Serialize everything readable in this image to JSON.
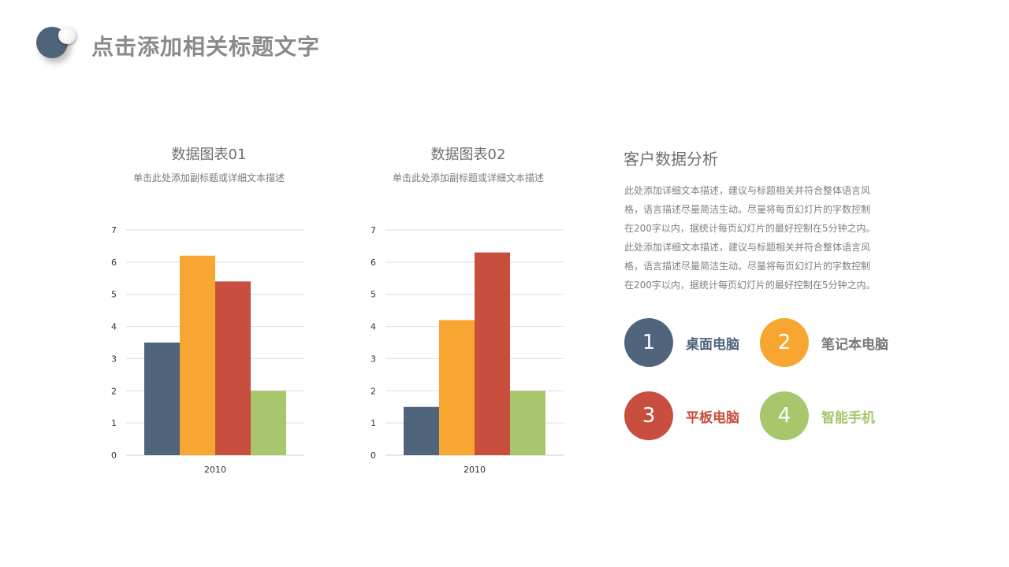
{
  "page": {
    "title": "点击添加相关标题文字"
  },
  "charts": [
    {
      "title": "数据图表01",
      "subtitle": "单击此处添加副标题或详细文本描述"
    },
    {
      "title": "数据图表02",
      "subtitle": "单击此处添加副标题或详细文本描述"
    }
  ],
  "chart_data": [
    {
      "type": "bar",
      "title": "数据图表01",
      "subtitle": "单击此处添加副标题或详细文本描述",
      "categories": [
        "2010"
      ],
      "ylim": [
        0,
        7
      ],
      "yticks": [
        0,
        1,
        2,
        3,
        4,
        5,
        6,
        7
      ],
      "grid": true,
      "series": [
        {
          "values": [
            3.5
          ],
          "color": "#50657c"
        },
        {
          "values": [
            6.2
          ],
          "color": "#f8a632"
        },
        {
          "values": [
            5.4
          ],
          "color": "#c84e3e"
        },
        {
          "values": [
            2.0
          ],
          "color": "#a8c66c"
        }
      ]
    },
    {
      "type": "bar",
      "title": "数据图表02",
      "subtitle": "单击此处添加副标题或详细文本描述",
      "categories": [
        "2010"
      ],
      "ylim": [
        0,
        7
      ],
      "yticks": [
        0,
        1,
        2,
        3,
        4,
        5,
        6,
        7
      ],
      "grid": true,
      "series": [
        {
          "values": [
            1.5
          ],
          "color": "#50657c"
        },
        {
          "values": [
            4.2
          ],
          "color": "#f8a632"
        },
        {
          "values": [
            6.3
          ],
          "color": "#c84e3e"
        },
        {
          "values": [
            2.0
          ],
          "color": "#a8c66c"
        }
      ]
    }
  ],
  "summary": {
    "title": "客户数据分析",
    "lines": [
      "此处添加详细文本描述，建议与标题相关并符合整体语言风",
      "格，语言描述尽量简洁生动。尽量将每页幻灯片的字数控制",
      "在200字以内，据统计每页幻灯片的最好控制在5分钟之内。",
      "此处添加详细文本描述，建议与标题相关并符合整体语言风",
      "格，语言描述尽量简洁生动。尽量将每页幻灯片的字数控制",
      "在200字以内，据统计每页幻灯片的最好控制在5分钟之内。"
    ]
  },
  "legend": [
    {
      "number": "1",
      "label": "桌面电脑",
      "color": "#50657c",
      "text_color": "#50657c"
    },
    {
      "number": "2",
      "label": "笔记本电脑",
      "color": "#f8a632",
      "text_color": "#777777"
    },
    {
      "number": "3",
      "label": "平板电脑",
      "color": "#c84e3e",
      "text_color": "#c84e3e"
    },
    {
      "number": "4",
      "label": "智能手机",
      "color": "#a8c66c",
      "text_color": "#a8c66c"
    }
  ]
}
